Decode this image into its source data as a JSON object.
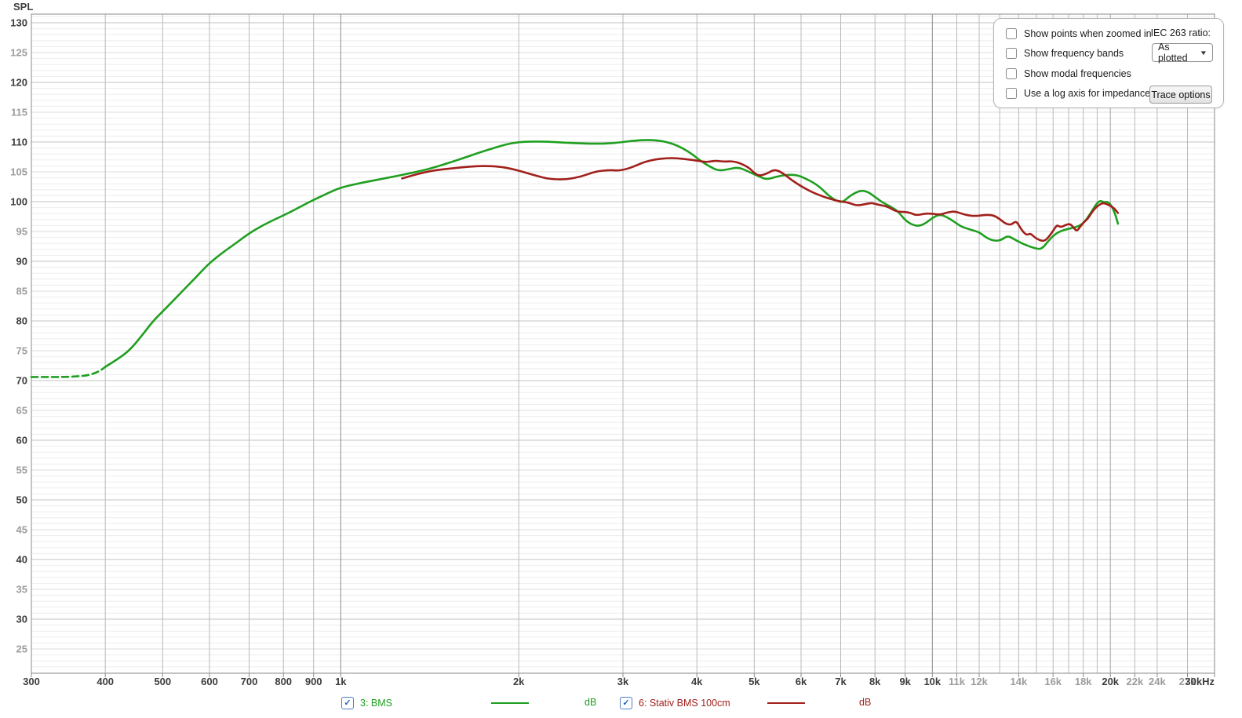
{
  "options_panel": {
    "checkboxes": [
      "Show points when zoomed in",
      "Show frequency bands",
      "Show modal frequencies",
      "Use a log axis for impedance"
    ],
    "checkbox_states": [
      false,
      false,
      false,
      false
    ],
    "iec_label": "IEC 263 ratio:",
    "dropdown_value": "As plotted",
    "button_label": "Trace options"
  },
  "legend": {
    "items": [
      {
        "label": "3: BMS",
        "unit": "dB",
        "checked": true,
        "color": "#1f9f1f"
      },
      {
        "label": "6: Stativ BMS 100cm",
        "unit": "dB",
        "checked": true,
        "color": "#a1201b"
      }
    ]
  },
  "chart_data": {
    "type": "line",
    "title": "",
    "x_axis": {
      "scale": "log",
      "unit": "Hz",
      "min": 300,
      "max": 30000,
      "ticks": [
        {
          "f": 300,
          "label": "300",
          "dark": true
        },
        {
          "f": 400,
          "label": "400",
          "dark": true
        },
        {
          "f": 500,
          "label": "500",
          "dark": true
        },
        {
          "f": 600,
          "label": "600",
          "dark": true
        },
        {
          "f": 700,
          "label": "700",
          "dark": true
        },
        {
          "f": 800,
          "label": "800",
          "dark": true
        },
        {
          "f": 900,
          "label": "900",
          "dark": true
        },
        {
          "f": 1000,
          "label": "1k",
          "dark": true
        },
        {
          "f": 2000,
          "label": "2k",
          "dark": true
        },
        {
          "f": 3000,
          "label": "3k",
          "dark": true
        },
        {
          "f": 4000,
          "label": "4k",
          "dark": true
        },
        {
          "f": 5000,
          "label": "5k",
          "dark": true
        },
        {
          "f": 6000,
          "label": "6k",
          "dark": true
        },
        {
          "f": 7000,
          "label": "7k",
          "dark": true
        },
        {
          "f": 8000,
          "label": "8k",
          "dark": true
        },
        {
          "f": 9000,
          "label": "9k",
          "dark": true
        },
        {
          "f": 10000,
          "label": "10k",
          "dark": true
        },
        {
          "f": 11000,
          "label": "11k",
          "dark": false
        },
        {
          "f": 12000,
          "label": "12k",
          "dark": false
        },
        {
          "f": 14000,
          "label": "14k",
          "dark": false
        },
        {
          "f": 16000,
          "label": "16k",
          "dark": false
        },
        {
          "f": 18000,
          "label": "18k",
          "dark": false
        },
        {
          "f": 20000,
          "label": "20k",
          "dark": true
        },
        {
          "f": 22000,
          "label": "22k",
          "dark": false
        },
        {
          "f": 24000,
          "label": "24k",
          "dark": false
        },
        {
          "f": 27000,
          "label": "27k",
          "dark": false
        },
        {
          "f": 30000,
          "label": "30kHz",
          "dark": true
        }
      ],
      "grid_only": [
        13000,
        15000,
        17000,
        19000
      ]
    },
    "y_axis": {
      "label": "SPL",
      "unit": "dB",
      "min": 21,
      "max": 131,
      "major_step": 5,
      "minor_step": 1,
      "ticks": [
        130,
        125,
        120,
        115,
        110,
        105,
        100,
        95,
        90,
        85,
        80,
        75,
        70,
        65,
        60,
        55,
        50,
        45,
        40,
        35,
        30,
        25
      ]
    },
    "colors": {
      "grid_minor": "#ededed",
      "grid_mid": "#dedede",
      "grid_major": "#c3c3c3",
      "grid_v": "#b9b9b9",
      "grid_v_major": "#8a8a8a",
      "grid_v_mid": "#a2a2a2",
      "frame": "#9e9e9e",
      "tick_dark": "#3d3d3d",
      "tick_gray": "#9c9c9c"
    },
    "series": [
      {
        "name": "3: BMS",
        "unit": "dB",
        "color": "#1f9f1f",
        "dashed_points": [
          [
            300,
            70.6
          ],
          [
            320,
            70.6
          ],
          [
            340,
            70.6
          ],
          [
            358,
            70.7
          ],
          [
            375,
            70.9
          ],
          [
            390,
            71.5
          ],
          [
            400,
            72.3
          ]
        ],
        "points": [
          [
            400,
            72.3
          ],
          [
            420,
            73.6
          ],
          [
            440,
            75.1
          ],
          [
            460,
            77.4
          ],
          [
            480,
            79.8
          ],
          [
            500,
            81.6
          ],
          [
            520,
            83.3
          ],
          [
            540,
            85.0
          ],
          [
            560,
            86.6
          ],
          [
            580,
            88.2
          ],
          [
            600,
            89.7
          ],
          [
            630,
            91.4
          ],
          [
            660,
            92.8
          ],
          [
            700,
            94.7
          ],
          [
            740,
            96.1
          ],
          [
            780,
            97.2
          ],
          [
            820,
            98.2
          ],
          [
            860,
            99.3
          ],
          [
            900,
            100.3
          ],
          [
            950,
            101.4
          ],
          [
            1000,
            102.4
          ],
          [
            1100,
            103.3
          ],
          [
            1200,
            104.0
          ],
          [
            1300,
            104.7
          ],
          [
            1400,
            105.4
          ],
          [
            1500,
            106.3
          ],
          [
            1600,
            107.2
          ],
          [
            1700,
            108.1
          ],
          [
            1800,
            108.9
          ],
          [
            1900,
            109.6
          ],
          [
            2000,
            110.0
          ],
          [
            2150,
            110.1
          ],
          [
            2300,
            110.0
          ],
          [
            2500,
            109.8
          ],
          [
            2700,
            109.7
          ],
          [
            2900,
            109.8
          ],
          [
            3100,
            110.2
          ],
          [
            3300,
            110.4
          ],
          [
            3500,
            110.2
          ],
          [
            3700,
            109.5
          ],
          [
            3900,
            108.2
          ],
          [
            4050,
            106.9
          ],
          [
            4200,
            105.9
          ],
          [
            4350,
            105.2
          ],
          [
            4500,
            105.4
          ],
          [
            4700,
            105.8
          ],
          [
            4900,
            105.0
          ],
          [
            5100,
            104.2
          ],
          [
            5250,
            103.7
          ],
          [
            5450,
            104.2
          ],
          [
            5650,
            104.5
          ],
          [
            5900,
            104.5
          ],
          [
            6100,
            103.9
          ],
          [
            6300,
            103.2
          ],
          [
            6500,
            102.2
          ],
          [
            6700,
            100.9
          ],
          [
            6900,
            100.1
          ],
          [
            7050,
            99.9
          ],
          [
            7200,
            100.7
          ],
          [
            7400,
            101.5
          ],
          [
            7600,
            101.9
          ],
          [
            7800,
            101.6
          ],
          [
            8000,
            100.8
          ],
          [
            8250,
            99.8
          ],
          [
            8500,
            99.2
          ],
          [
            8750,
            98.4
          ],
          [
            9000,
            96.9
          ],
          [
            9250,
            96.1
          ],
          [
            9500,
            95.9
          ],
          [
            9750,
            96.4
          ],
          [
            10000,
            97.3
          ],
          [
            10300,
            97.9
          ],
          [
            10600,
            97.4
          ],
          [
            10900,
            96.6
          ],
          [
            11200,
            95.8
          ],
          [
            11600,
            95.3
          ],
          [
            12000,
            94.9
          ],
          [
            12400,
            93.8
          ],
          [
            12800,
            93.4
          ],
          [
            13100,
            93.6
          ],
          [
            13400,
            94.3
          ],
          [
            13700,
            93.8
          ],
          [
            14100,
            93.1
          ],
          [
            14500,
            92.6
          ],
          [
            14900,
            92.2
          ],
          [
            15300,
            92.0
          ],
          [
            15700,
            93.4
          ],
          [
            16100,
            94.5
          ],
          [
            16500,
            95.1
          ],
          [
            16900,
            95.4
          ],
          [
            17300,
            95.6
          ],
          [
            17700,
            95.9
          ],
          [
            18100,
            96.6
          ],
          [
            18500,
            98.0
          ],
          [
            18900,
            99.5
          ],
          [
            19200,
            100.2
          ],
          [
            19500,
            99.9
          ],
          [
            19800,
            100.0
          ],
          [
            20100,
            99.3
          ],
          [
            20400,
            97.8
          ],
          [
            20600,
            96.3
          ]
        ]
      },
      {
        "name": "6: Stativ BMS 100cm",
        "unit": "dB",
        "color": "#a1201b",
        "points": [
          [
            1270,
            103.9
          ],
          [
            1320,
            104.4
          ],
          [
            1380,
            104.9
          ],
          [
            1450,
            105.3
          ],
          [
            1550,
            105.6
          ],
          [
            1650,
            105.9
          ],
          [
            1750,
            106.0
          ],
          [
            1850,
            105.9
          ],
          [
            1950,
            105.5
          ],
          [
            2050,
            104.9
          ],
          [
            2150,
            104.3
          ],
          [
            2250,
            103.8
          ],
          [
            2400,
            103.7
          ],
          [
            2550,
            104.2
          ],
          [
            2700,
            105.1
          ],
          [
            2850,
            105.3
          ],
          [
            2950,
            105.2
          ],
          [
            3050,
            105.5
          ],
          [
            3150,
            106.0
          ],
          [
            3250,
            106.6
          ],
          [
            3400,
            107.1
          ],
          [
            3550,
            107.3
          ],
          [
            3700,
            107.3
          ],
          [
            3850,
            107.1
          ],
          [
            4000,
            106.9
          ],
          [
            4150,
            106.6
          ],
          [
            4300,
            106.9
          ],
          [
            4450,
            106.7
          ],
          [
            4600,
            106.8
          ],
          [
            4750,
            106.4
          ],
          [
            4900,
            105.7
          ],
          [
            5000,
            104.8
          ],
          [
            5100,
            104.3
          ],
          [
            5250,
            104.7
          ],
          [
            5400,
            105.4
          ],
          [
            5550,
            105.0
          ],
          [
            5700,
            104.1
          ],
          [
            5850,
            103.3
          ],
          [
            6000,
            102.6
          ],
          [
            6200,
            101.8
          ],
          [
            6400,
            101.2
          ],
          [
            6700,
            100.5
          ],
          [
            7000,
            100.0
          ],
          [
            7200,
            99.9
          ],
          [
            7450,
            99.3
          ],
          [
            7700,
            99.6
          ],
          [
            7900,
            99.8
          ],
          [
            8100,
            99.5
          ],
          [
            8400,
            99.2
          ],
          [
            8700,
            98.3
          ],
          [
            9000,
            98.3
          ],
          [
            9200,
            98.1
          ],
          [
            9400,
            97.7
          ],
          [
            9700,
            98.0
          ],
          [
            10000,
            98.0
          ],
          [
            10300,
            97.8
          ],
          [
            10600,
            98.2
          ],
          [
            10900,
            98.4
          ],
          [
            11200,
            98.0
          ],
          [
            11500,
            97.7
          ],
          [
            11800,
            97.6
          ],
          [
            12100,
            97.7
          ],
          [
            12400,
            97.8
          ],
          [
            12700,
            97.7
          ],
          [
            13000,
            97.1
          ],
          [
            13300,
            96.3
          ],
          [
            13600,
            96.1
          ],
          [
            13850,
            96.8
          ],
          [
            14050,
            95.8
          ],
          [
            14250,
            94.9
          ],
          [
            14450,
            94.4
          ],
          [
            14650,
            94.7
          ],
          [
            14900,
            94.0
          ],
          [
            15200,
            93.5
          ],
          [
            15500,
            93.4
          ],
          [
            15800,
            94.3
          ],
          [
            16050,
            95.3
          ],
          [
            16250,
            96.1
          ],
          [
            16500,
            95.7
          ],
          [
            16800,
            96.1
          ],
          [
            17100,
            96.3
          ],
          [
            17350,
            95.6
          ],
          [
            17550,
            95.0
          ],
          [
            17800,
            95.9
          ],
          [
            18100,
            96.7
          ],
          [
            18300,
            97.1
          ],
          [
            18550,
            98.0
          ],
          [
            18800,
            98.8
          ],
          [
            19100,
            99.4
          ],
          [
            19400,
            99.8
          ],
          [
            19700,
            99.6
          ],
          [
            20000,
            99.3
          ],
          [
            20300,
            98.9
          ],
          [
            20600,
            98.1
          ]
        ]
      }
    ]
  }
}
